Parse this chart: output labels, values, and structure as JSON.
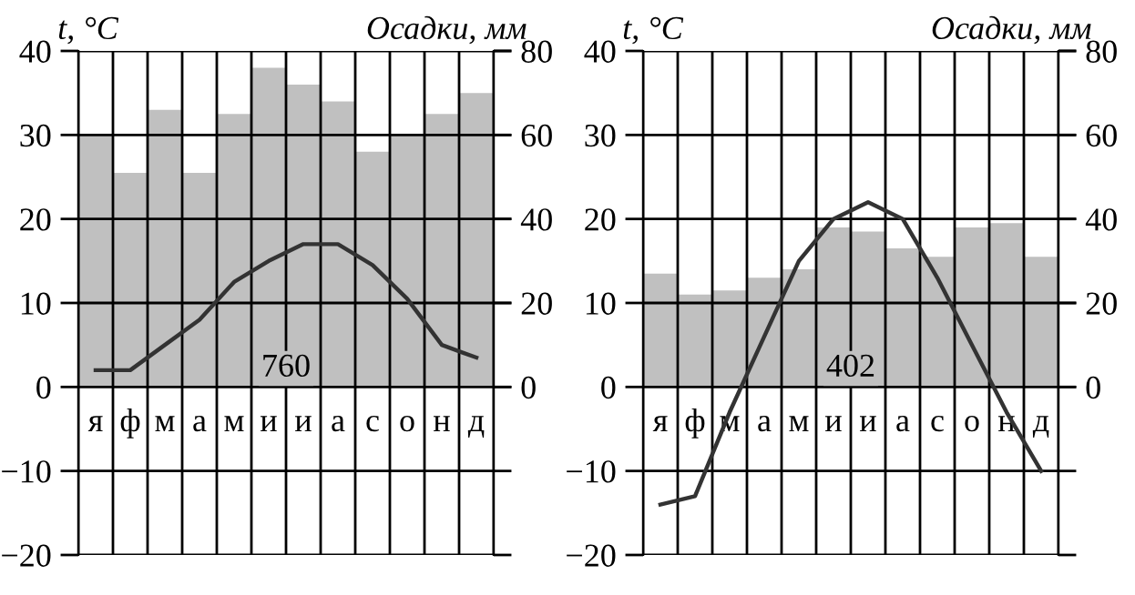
{
  "chart_data": [
    {
      "type": "bar",
      "categories": [
        "я",
        "ф",
        "м",
        "а",
        "м",
        "и",
        "и",
        "а",
        "с",
        "о",
        "н",
        "д"
      ],
      "ylabel": "t, °C",
      "y2label": "Осадки, мм",
      "ylim": [
        -20,
        40
      ],
      "yticks": [
        -20,
        -10,
        0,
        10,
        20,
        30,
        40
      ],
      "y2lim": [
        -40,
        80
      ],
      "y2ticks": [
        0,
        20,
        40,
        60,
        80
      ],
      "grid": true,
      "annotations": [
        "760"
      ],
      "series": [
        {
          "axis": "y2",
          "color": "#c0c0c0",
          "values": [
            60,
            51,
            66,
            51,
            65,
            76,
            72,
            68,
            56,
            60,
            65,
            70
          ]
        },
        {
          "type": "line",
          "axis": "y",
          "color": "#333333",
          "values": [
            2,
            2,
            5,
            8,
            12.5,
            15,
            17,
            17,
            14.5,
            10.5,
            5,
            3.5
          ]
        }
      ]
    },
    {
      "type": "bar",
      "categories": [
        "я",
        "ф",
        "м",
        "а",
        "м",
        "и",
        "и",
        "а",
        "с",
        "о",
        "н",
        "д"
      ],
      "ylabel": "t, °C",
      "y2label": "Осадки, мм",
      "ylim": [
        -20,
        40
      ],
      "yticks": [
        -20,
        -10,
        0,
        10,
        20,
        30,
        40
      ],
      "y2lim": [
        -40,
        80
      ],
      "y2ticks": [
        0,
        20,
        40,
        60,
        80
      ],
      "grid": true,
      "annotations": [
        "402"
      ],
      "series": [
        {
          "axis": "y2",
          "color": "#c0c0c0",
          "values": [
            27,
            22,
            23,
            26,
            28,
            38,
            37,
            33,
            31,
            38,
            39,
            31
          ]
        },
        {
          "type": "line",
          "axis": "y",
          "color": "#333333",
          "values": [
            -14,
            -13,
            -3,
            6,
            15,
            20,
            22,
            20,
            13,
            5,
            -3,
            -10
          ]
        }
      ]
    }
  ]
}
